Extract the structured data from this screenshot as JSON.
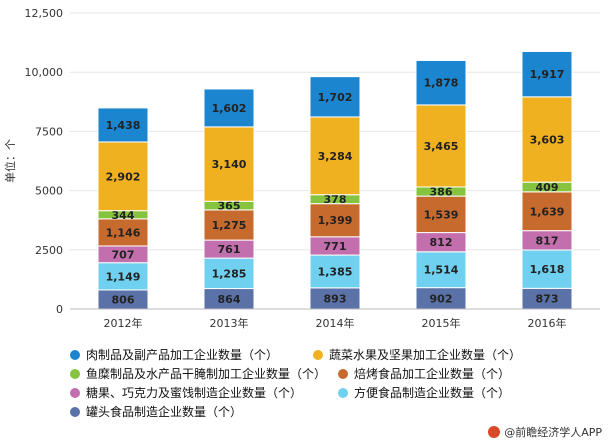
{
  "chart_data": {
    "type": "bar",
    "stacked": true,
    "categories": [
      "2012年",
      "2013年",
      "2014年",
      "2015年",
      "2016年"
    ],
    "ylabel": "单位：个",
    "ylim": [
      0,
      12500
    ],
    "yticks": [
      0,
      2500,
      5000,
      7500,
      10000,
      12500
    ],
    "ytick_labels": [
      "0",
      "2500",
      "5000",
      "7500",
      "10,000",
      "12,500"
    ],
    "grid": true,
    "legend_position": "bottom",
    "series": [
      {
        "name": "罐头食品制造企业数量（个）",
        "color": "#5b72a8",
        "values": [
          806,
          864,
          893,
          902,
          873
        ],
        "labels": [
          "806",
          "864",
          "893",
          "902",
          "873"
        ]
      },
      {
        "name": "方便食品制造企业数量（个）",
        "color": "#6fd0ef",
        "values": [
          1149,
          1285,
          1385,
          1514,
          1618
        ],
        "labels": [
          "1,149",
          "1,285",
          "1,385",
          "1,514",
          "1,618"
        ]
      },
      {
        "name": "糖果、巧克力及蜜饯制造企业数量（个）",
        "color": "#c36fae",
        "values": [
          707,
          761,
          771,
          812,
          817
        ],
        "labels": [
          "707",
          "761",
          "771",
          "812",
          "817"
        ]
      },
      {
        "name": "焙烤食品加工企业数量（个）",
        "color": "#c76a2e",
        "values": [
          1146,
          1275,
          1399,
          1539,
          1639
        ],
        "labels": [
          "1,146",
          "1,275",
          "1,399",
          "1,539",
          "1,639"
        ]
      },
      {
        "name": "鱼糜制品及水产品干腌制加工企业数量（个）",
        "color": "#86c43f",
        "values": [
          344,
          365,
          378,
          386,
          409
        ],
        "labels": [
          "344",
          "365",
          "378",
          "386",
          "409"
        ]
      },
      {
        "name": "蔬菜水果及坚果加工企业数量（个）",
        "color": "#f0b121",
        "values": [
          2902,
          3140,
          3284,
          3465,
          3603
        ],
        "labels": [
          "2,902",
          "3,140",
          "3,284",
          "3,465",
          "3,603"
        ]
      },
      {
        "name": "肉制品及副产品加工企业数量（个）",
        "color": "#1b86cf",
        "values": [
          1438,
          1602,
          1702,
          1878,
          1917
        ],
        "labels": [
          "1,438",
          "1,602",
          "1,702",
          "1,878",
          "1,917"
        ]
      }
    ]
  },
  "legend": [
    {
      "label": "肉制品及副产品加工企业数量（个）",
      "color": "#1b86cf"
    },
    {
      "label": "蔬菜水果及坚果加工企业数量（个）",
      "color": "#f0b121"
    },
    {
      "label": "鱼糜制品及水产品干腌制加工企业数量（个）",
      "color": "#86c43f"
    },
    {
      "label": "焙烤食品加工企业数量（个）",
      "color": "#c76a2e"
    },
    {
      "label": "糖果、巧克力及蜜饯制造企业数量（个）",
      "color": "#c36fae"
    },
    {
      "label": "方便食品制造企业数量（个）",
      "color": "#6fd0ef"
    },
    {
      "label": "罐头食品制造企业数量（个）",
      "color": "#5b72a8"
    }
  ],
  "credit": "@前瞻经济学人APP"
}
